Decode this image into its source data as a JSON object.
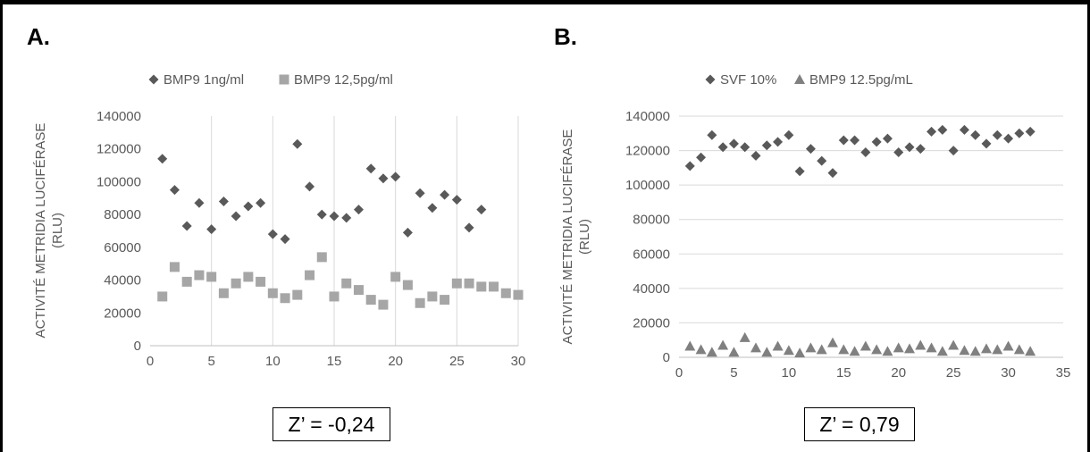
{
  "panels": [
    {
      "letter": "A.",
      "z_label": "Z’ = -0,24"
    },
    {
      "letter": "B.",
      "z_label": "Z’ = 0,79"
    }
  ],
  "chart_data": [
    {
      "type": "scatter",
      "title": "",
      "xlabel": "",
      "ylabel": "ACTIVITÉ METRIDIA LUCIFÉRASE (RLU)",
      "xlim": [
        0,
        30
      ],
      "ylim": [
        0,
        140000
      ],
      "xticks": [
        0,
        5,
        10,
        15,
        20,
        25,
        30
      ],
      "yticks": [
        0,
        20000,
        40000,
        60000,
        80000,
        100000,
        120000,
        140000
      ],
      "grid": "vertical",
      "legend_position": "top-left",
      "series": [
        {
          "name": "BMP9 1ng/ml",
          "marker": "diamond",
          "color": "#595959",
          "x": [
            1,
            2,
            3,
            4,
            5,
            6,
            7,
            8,
            9,
            10,
            11,
            12,
            13,
            14,
            15,
            16,
            17,
            18,
            19,
            20,
            21,
            22,
            23,
            24,
            25,
            26,
            27
          ],
          "y": [
            114000,
            95000,
            73000,
            87000,
            71000,
            88000,
            79000,
            85000,
            87000,
            68000,
            65000,
            123000,
            97000,
            80000,
            79000,
            78000,
            83000,
            108000,
            102000,
            103000,
            69000,
            93000,
            84000,
            92000,
            89000,
            72000,
            83000
          ]
        },
        {
          "name": "BMP9 12,5pg/ml",
          "marker": "square",
          "color": "#A6A6A6",
          "x": [
            1,
            2,
            3,
            4,
            5,
            6,
            7,
            8,
            9,
            10,
            11,
            12,
            13,
            14,
            15,
            16,
            17,
            18,
            19,
            20,
            21,
            22,
            23,
            24,
            25,
            26,
            27,
            28,
            29,
            30
          ],
          "y": [
            30000,
            48000,
            39000,
            43000,
            42000,
            32000,
            38000,
            42000,
            39000,
            32000,
            29000,
            31000,
            43000,
            54000,
            30000,
            38000,
            34000,
            28000,
            25000,
            42000,
            37000,
            26000,
            30000,
            28000,
            38000,
            38000,
            36000,
            36000,
            32000,
            31000
          ]
        }
      ]
    },
    {
      "type": "scatter",
      "title": "",
      "xlabel": "",
      "ylabel": "ACTIVITÉ METRIDIA LUCIFÉRASE (RLU)",
      "xlim": [
        0,
        35
      ],
      "ylim": [
        0,
        140000
      ],
      "xticks": [
        0,
        5,
        10,
        15,
        20,
        25,
        30,
        35
      ],
      "yticks": [
        0,
        20000,
        40000,
        60000,
        80000,
        100000,
        120000,
        140000
      ],
      "grid": "horizontal",
      "legend_position": "top-left",
      "series": [
        {
          "name": "SVF 10%",
          "marker": "diamond",
          "color": "#595959",
          "x": [
            1,
            2,
            3,
            4,
            5,
            6,
            7,
            8,
            9,
            10,
            11,
            12,
            13,
            14,
            15,
            16,
            17,
            18,
            19,
            20,
            21,
            22,
            23,
            24,
            25,
            26,
            27,
            28,
            29,
            30,
            31,
            32
          ],
          "y": [
            111000,
            116000,
            129000,
            122000,
            124000,
            122000,
            117000,
            123000,
            125000,
            129000,
            108000,
            121000,
            114000,
            107000,
            126000,
            126000,
            119000,
            125000,
            127000,
            119000,
            122000,
            121000,
            131000,
            132000,
            120000,
            132000,
            129000,
            124000,
            129000,
            127000,
            130000,
            131000
          ]
        },
        {
          "name": "BMP9 12.5pg/mL",
          "marker": "triangle",
          "color": "#808080",
          "x": [
            1,
            2,
            3,
            4,
            5,
            6,
            7,
            8,
            9,
            10,
            11,
            12,
            13,
            14,
            15,
            16,
            17,
            18,
            19,
            20,
            21,
            22,
            23,
            24,
            25,
            26,
            27,
            28,
            29,
            30,
            31,
            32
          ],
          "y": [
            6500,
            4500,
            3000,
            7000,
            3000,
            11500,
            5500,
            3000,
            6500,
            4000,
            2500,
            5500,
            4500,
            8500,
            4500,
            3500,
            6500,
            4500,
            3500,
            5500,
            5000,
            7000,
            5500,
            3500,
            7000,
            4000,
            3500,
            5000,
            4500,
            6500,
            4500,
            3500
          ]
        }
      ]
    }
  ]
}
